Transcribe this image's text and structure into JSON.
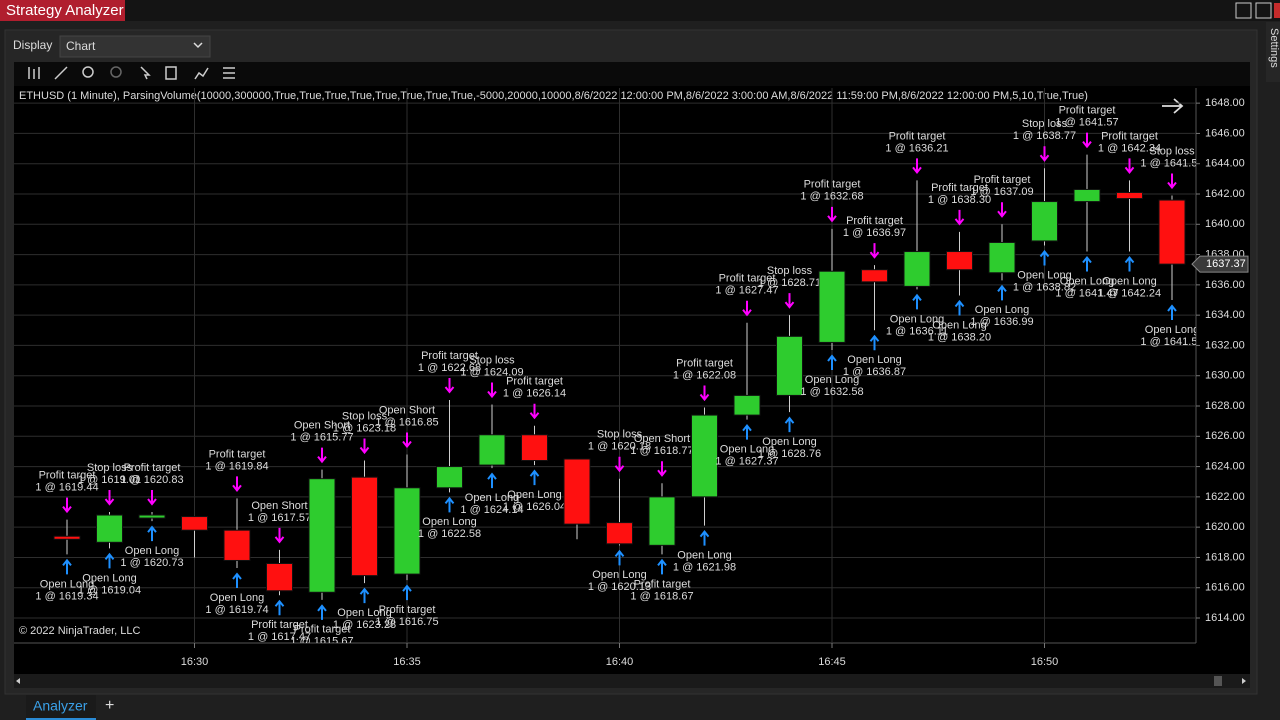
{
  "window": {
    "title": "Strategy Analyzer",
    "display_label": "Display",
    "display_value": "Chart",
    "side_tab": "Settings",
    "bottom_tab": "Analyzer",
    "add_tab": "+"
  },
  "chart_data": {
    "type": "candlestick",
    "title": "ETHUSD (1 Minute), ParsingVolume(10000,300000,True,True,True,True,True,True,True,True,-5000,20000,10000,8/6/2022 12:00:00 PM,8/6/2022 3:00:00 AM,8/6/2022 11:59:00 PM,8/6/2022 12:00:00 PM,5,10,True,True)",
    "copyright": "© 2022 NinjaTrader, LLC",
    "categories": [
      null,
      null,
      null,
      "16:30",
      null,
      null,
      null,
      null,
      "16:35",
      null,
      null,
      null,
      null,
      "16:40",
      null,
      null,
      null,
      null,
      "16:45",
      null,
      null,
      null,
      null,
      "16:50",
      null,
      null,
      null
    ],
    "open": [
      1619.4,
      1619.0,
      1620.6,
      1620.7,
      1619.8,
      1617.6,
      1615.7,
      1623.3,
      1616.9,
      1622.6,
      1624.1,
      1626.1,
      1624.5,
      1620.3,
      1618.8,
      1622.0,
      1627.4,
      1628.7,
      1632.2,
      1637.0,
      1635.9,
      1638.2,
      1636.8,
      1638.9,
      1641.5,
      1642.1,
      1641.6
    ],
    "high": [
      1620.5,
      1621.0,
      1621.0,
      1620.7,
      1621.9,
      1618.5,
      1623.8,
      1624.4,
      1624.8,
      1628.4,
      1628.1,
      1626.7,
      1624.5,
      1623.2,
      1622.9,
      1627.9,
      1633.5,
      1634.0,
      1639.7,
      1637.3,
      1642.9,
      1639.5,
      1640.0,
      1643.7,
      1644.6,
      1642.9,
      1641.9
    ],
    "low": [
      1618.2,
      1618.6,
      1620.4,
      1618.0,
      1617.3,
      1615.5,
      1615.2,
      1616.3,
      1616.5,
      1622.3,
      1623.9,
      1624.1,
      1619.2,
      1618.8,
      1618.2,
      1620.1,
      1627.1,
      1627.6,
      1631.7,
      1633.0,
      1635.7,
      1635.3,
      1636.3,
      1638.6,
      1638.2,
      1638.2,
      1635.0
    ],
    "close": [
      1619.2,
      1620.8,
      1620.8,
      1619.8,
      1617.8,
      1615.8,
      1623.2,
      1616.8,
      1622.6,
      1624.0,
      1626.1,
      1624.4,
      1620.2,
      1618.9,
      1622.0,
      1627.4,
      1628.7,
      1632.6,
      1636.9,
      1636.2,
      1638.2,
      1637.0,
      1638.8,
      1641.5,
      1642.3,
      1641.7,
      1637.37
    ],
    "up_color": "#2ecc2e",
    "down_color": "#ff1010",
    "above_color": "#ff00ff",
    "below_color": "#1e90ff",
    "signals_above": [
      [
        "Profit target",
        "1 @ 1619.44"
      ],
      [
        "Stop loss",
        "1 @ 1619.01"
      ],
      [
        "Profit target",
        "1 @ 1620.83"
      ],
      null,
      [
        "Profit target",
        "1 @ 1619.84"
      ],
      [
        "Open Short",
        "1 @ 1617.57"
      ],
      [
        "Open Short",
        "1 @ 1615.77"
      ],
      [
        "Stop loss",
        "1 @ 1623.18"
      ],
      [
        "Open Short",
        "1 @ 1616.85"
      ],
      [
        "Profit target",
        "1 @ 1622.68"
      ],
      [
        "Stop loss",
        "1 @ 1624.09"
      ],
      [
        "Profit target",
        "1 @ 1626.14"
      ],
      null,
      [
        "Stop loss",
        "1 @ 1620.18"
      ],
      [
        "Open Short",
        "1 @ 1618.77"
      ],
      [
        "Profit target",
        "1 @ 1622.08"
      ],
      [
        "Profit target",
        "1 @ 1627.47"
      ],
      [
        "Stop loss",
        "1 @ 1628.71"
      ],
      [
        "Profit target",
        "1 @ 1632.68"
      ],
      [
        "Profit target",
        "1 @ 1636.97"
      ],
      [
        "Profit target",
        "1 @ 1636.21"
      ],
      [
        "Profit target",
        "1 @ 1638.30"
      ],
      [
        "Profit target",
        "1 @ 1637.09"
      ],
      [
        "Stop loss",
        "1 @ 1638.77"
      ],
      [
        "Profit target",
        "1 @ 1641.57"
      ],
      [
        "Profit target",
        "1 @ 1642.34"
      ],
      [
        "Stop loss",
        "1 @ 1641.52"
      ]
    ],
    "signals_below": [
      [
        "Open Long",
        "1 @ 1619.34"
      ],
      [
        "Open Long",
        "1 @ 1619.04"
      ],
      [
        "Open Long",
        "1 @ 1620.73"
      ],
      null,
      [
        "Open Long",
        "1 @ 1619.74"
      ],
      [
        "Profit target",
        "1 @ 1617.47"
      ],
      [
        "Profit target",
        "1 @ 1615.67"
      ],
      [
        "Open Long",
        "1 @ 1623.28"
      ],
      [
        "Profit target",
        "1 @ 1616.75"
      ],
      [
        "Open Long",
        "1 @ 1622.58"
      ],
      [
        "Open Long",
        "1 @ 1624.14"
      ],
      [
        "Open Long",
        "1 @ 1626.04"
      ],
      null,
      [
        "Open Long",
        "1 @ 1620.13"
      ],
      [
        "Profit target",
        "1 @ 1618.67"
      ],
      [
        "Open Long",
        "1 @ 1621.98"
      ],
      [
        "Open Long",
        "1 @ 1627.37"
      ],
      [
        "Open Long",
        "1 @ 1628.76"
      ],
      [
        "Open Long",
        "1 @ 1632.58"
      ],
      [
        "Open Long",
        "1 @ 1636.87"
      ],
      [
        "Open Long",
        "1 @ 1636.11"
      ],
      [
        "Open Long",
        "1 @ 1638.20"
      ],
      [
        "Open Long",
        "1 @ 1636.99"
      ],
      [
        "Open Long",
        "1 @ 1638.82"
      ],
      [
        "Open Long",
        "1 @ 1641.47"
      ],
      [
        "Open Long",
        "1 @ 1642.24"
      ],
      [
        "Open Long",
        "1 @ 1641.57"
      ]
    ],
    "ylim": [
      1612.35,
      1649.0
    ],
    "yticks": [
      {
        "value": 1614,
        "label": "1614.00"
      },
      {
        "value": 1616,
        "label": "1616.00"
      },
      {
        "value": 1618,
        "label": "1618.00"
      },
      {
        "value": 1620,
        "label": "1620.00"
      },
      {
        "value": 1622,
        "label": "1622.00"
      },
      {
        "value": 1624,
        "label": "1624.00"
      },
      {
        "value": 1626,
        "label": "1626.00"
      },
      {
        "value": 1628,
        "label": "1628.00"
      },
      {
        "value": 1630,
        "label": "1630.00"
      },
      {
        "value": 1632,
        "label": "1632.00"
      },
      {
        "value": 1634,
        "label": "1634.00"
      },
      {
        "value": 1636,
        "label": "1636.00"
      },
      {
        "value": 1638,
        "label": "1638.00"
      },
      {
        "value": 1640,
        "label": "1640.00"
      },
      {
        "value": 1642,
        "label": "1642.00"
      },
      {
        "value": 1644,
        "label": "1644.00"
      },
      {
        "value": 1646,
        "label": "1646.00"
      },
      {
        "value": 1648,
        "label": "1648.00"
      }
    ],
    "grid": true
  }
}
